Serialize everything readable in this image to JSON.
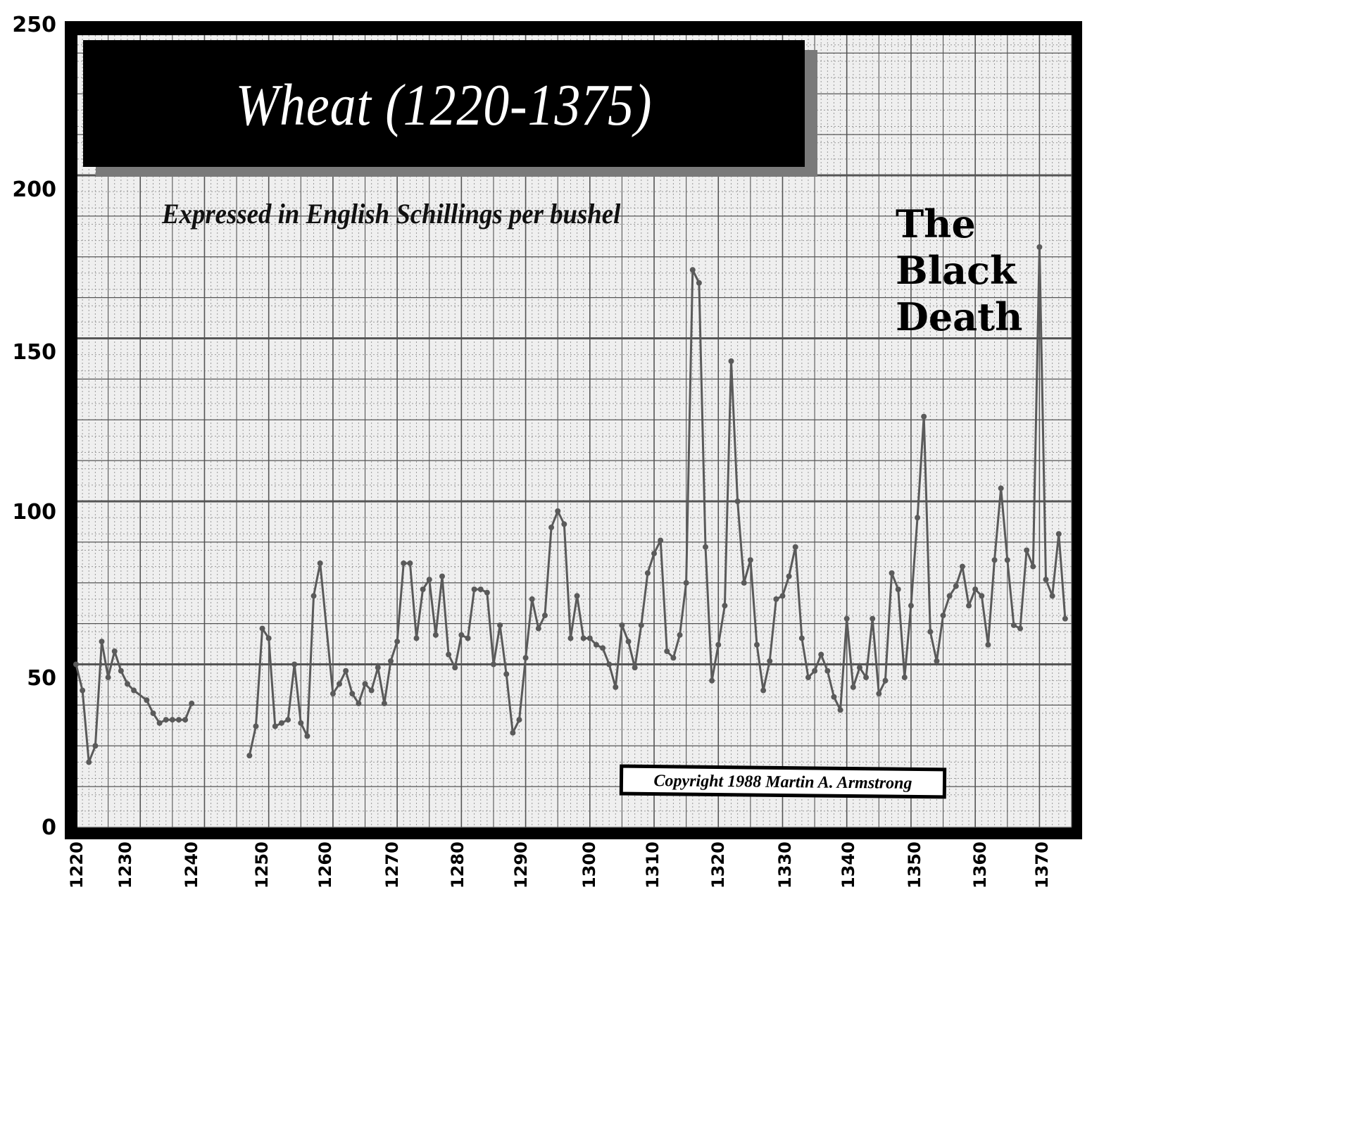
{
  "chart_data": {
    "type": "line",
    "title": "Wheat (1220-1375)",
    "subtitle": "Expressed in English Schillings per bushel",
    "xlabel": "",
    "ylabel": "",
    "xlim": [
      1220,
      1375
    ],
    "ylim": [
      0,
      250
    ],
    "yticks": [
      0,
      50,
      100,
      150,
      200,
      250
    ],
    "xticks": [
      1220,
      1230,
      1240,
      1250,
      1260,
      1270,
      1280,
      1290,
      1300,
      1310,
      1320,
      1330,
      1340,
      1350,
      1360,
      1370
    ],
    "grid": true,
    "annotations": [
      "The Black Death",
      "Copyright 1988 Martin A. Armstrong"
    ],
    "series": [
      {
        "name": "Wheat price",
        "segments": [
          {
            "x": [
              1220,
              1221,
              1222,
              1223,
              1224,
              1225,
              1226,
              1227,
              1228,
              1229,
              1231,
              1232,
              1233,
              1234,
              1235,
              1236,
              1237,
              1238
            ],
            "values": [
              50,
              42,
              20,
              25,
              57,
              46,
              54,
              48,
              44,
              42,
              39,
              35,
              32,
              33,
              33,
              33,
              33,
              38
            ]
          },
          {
            "x": [
              1247,
              1248,
              1249,
              1250,
              1251,
              1252,
              1253,
              1254,
              1255,
              1256,
              1257,
              1258,
              1260,
              1261,
              1262,
              1263,
              1264,
              1265,
              1266,
              1267,
              1268,
              1269,
              1270,
              1271,
              1272,
              1273,
              1274,
              1275,
              1276,
              1277,
              1278,
              1279,
              1280,
              1281,
              1282,
              1283,
              1284,
              1285,
              1286,
              1287,
              1288,
              1289,
              1290,
              1291,
              1292,
              1293,
              1294,
              1295,
              1296,
              1297,
              1298,
              1299,
              1300,
              1301,
              1302,
              1303,
              1304,
              1305,
              1306,
              1307,
              1308,
              1309,
              1310,
              1311,
              1312,
              1313,
              1314,
              1315,
              1316,
              1317,
              1318,
              1319,
              1320,
              1321,
              1322,
              1323,
              1324,
              1325,
              1326,
              1327,
              1328,
              1329,
              1330,
              1331,
              1332,
              1333,
              1334,
              1335,
              1336,
              1337,
              1338,
              1339,
              1340,
              1341,
              1342,
              1343,
              1344,
              1345,
              1346,
              1347,
              1348,
              1349,
              1350,
              1351,
              1352,
              1353,
              1354,
              1355,
              1356,
              1357,
              1358,
              1359,
              1360,
              1361,
              1362,
              1363,
              1364,
              1365,
              1366,
              1367,
              1368,
              1369,
              1370,
              1371,
              1372,
              1373,
              1374
            ],
            "values": [
              22,
              31,
              61,
              58,
              31,
              32,
              33,
              50,
              32,
              28,
              71,
              81,
              41,
              44,
              48,
              41,
              38,
              44,
              42,
              49,
              38,
              51,
              57,
              81,
              81,
              58,
              73,
              76,
              59,
              77,
              53,
              49,
              59,
              58,
              73,
              73,
              72,
              50,
              62,
              47,
              29,
              33,
              52,
              70,
              61,
              65,
              92,
              97,
              93,
              58,
              71,
              58,
              58,
              56,
              55,
              50,
              43,
              62,
              57,
              49,
              62,
              78,
              84,
              88,
              54,
              52,
              59,
              75,
              171,
              167,
              86,
              45,
              56,
              68,
              143,
              100,
              75,
              82,
              56,
              42,
              51,
              70,
              71,
              77,
              86,
              58,
              46,
              48,
              53,
              48,
              40,
              36,
              64,
              43,
              49,
              46,
              64,
              41,
              45,
              78,
              73,
              46,
              68,
              95,
              126,
              60,
              51,
              65,
              71,
              74,
              80,
              68,
              73,
              71,
              56,
              82,
              104,
              82,
              62,
              61,
              85,
              80,
              178,
              76,
              71,
              90,
              64
            ]
          }
        ]
      }
    ]
  },
  "labels": {
    "title": "Wheat (1220-1375)",
    "subtitle": "Expressed in English Schillings per bushel",
    "annotation_lines": [
      "The",
      "Black",
      "Death"
    ],
    "copyright": "Copyright 1988 Martin A. Armstrong",
    "yticks": [
      "250",
      "200",
      "150",
      "100",
      "50",
      "0"
    ],
    "xticks": [
      "1220",
      "1230",
      "1240",
      "1250",
      "1260",
      "1270",
      "1280",
      "1290",
      "1300",
      "1310",
      "1320",
      "1330",
      "1340",
      "1350",
      "1360",
      "1370"
    ]
  },
  "colors": {
    "line": "#5a5a5a",
    "grid_major": "#555555",
    "grid_minor": "#9a9a9a",
    "paper": "#efefef",
    "frame": "#000000"
  }
}
